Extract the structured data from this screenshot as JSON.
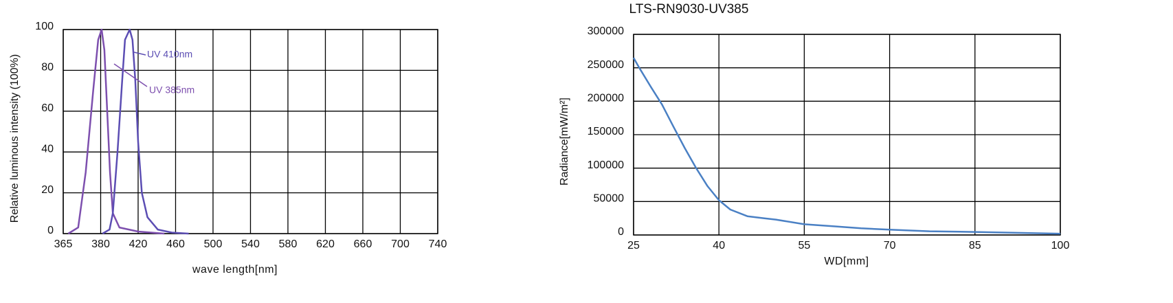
{
  "chart_data": [
    {
      "type": "line",
      "ylabel": "Relative luminous intensity (100%)",
      "xlabel": "wave length[nm]",
      "xlim": [
        365,
        740
      ],
      "xticks": [
        365,
        380,
        420,
        460,
        500,
        540,
        580,
        620,
        660,
        700,
        740
      ],
      "ylim": [
        0,
        100
      ],
      "yticks": [
        0,
        20,
        40,
        60,
        80,
        100
      ],
      "grid": true,
      "annotations": [
        "UV 410nm",
        "UV 385nm"
      ],
      "series": [
        {
          "name": "UV 385nm",
          "color": "#7d4fae",
          "x": [
            367,
            371,
            374,
            377,
            379,
            381,
            384,
            387,
            390,
            393,
            400,
            420,
            448
          ],
          "values": [
            0,
            3,
            30,
            70,
            95,
            100,
            90,
            60,
            30,
            10,
            3,
            1,
            0
          ]
        },
        {
          "name": "UV 410nm",
          "color": "#5b4db3",
          "x": [
            382,
            389.5,
            393,
            398,
            403,
            406,
            411,
            414,
            417,
            420,
            424,
            430,
            441,
            456,
            474
          ],
          "values": [
            0,
            2,
            10,
            40,
            75,
            95,
            100,
            95,
            75,
            45,
            20,
            8,
            2,
            0.5,
            0
          ]
        }
      ]
    },
    {
      "type": "line",
      "title": "LTS-RN9030-UV385",
      "ylabel": "Radiance[mW/m²]",
      "xlabel": "WD[mm]",
      "xlim": [
        25,
        100
      ],
      "xticks": [
        25,
        40,
        55,
        70,
        85,
        100
      ],
      "ylim": [
        0,
        300000
      ],
      "yticks": [
        0,
        50000,
        100000,
        150000,
        200000,
        250000,
        300000
      ],
      "grid": true,
      "series": [
        {
          "color": "#4a80c4",
          "x": [
            25,
            26,
            28,
            30,
            32,
            34,
            36,
            38,
            40,
            42,
            45,
            48,
            50,
            55,
            60,
            65,
            70,
            77,
            85,
            100
          ],
          "values": [
            265000,
            250000,
            222000,
            195000,
            162000,
            130000,
            100000,
            73000,
            52000,
            38000,
            28000,
            25000,
            23000,
            16000,
            13000,
            10000,
            8000,
            5500,
            4500,
            2000
          ]
        }
      ]
    }
  ]
}
